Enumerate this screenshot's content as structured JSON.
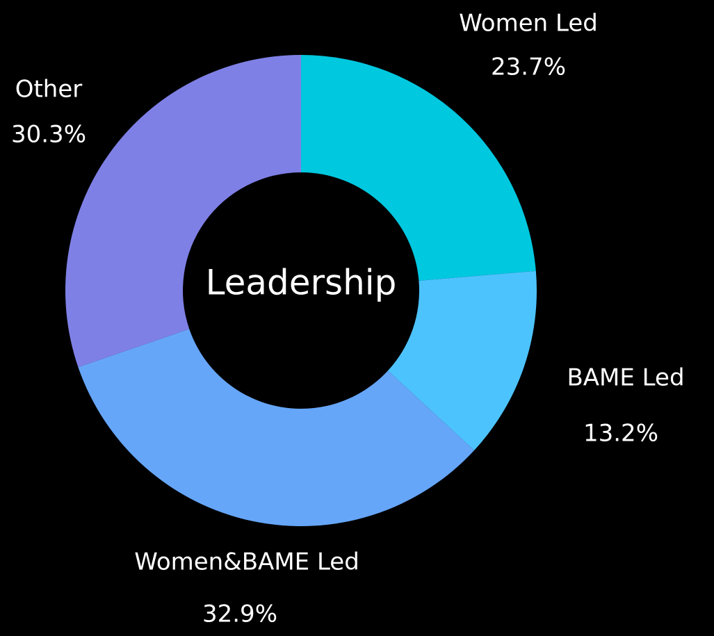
{
  "chart_data": {
    "type": "pie",
    "center_label": "Leadership",
    "categories": [
      "Women Led",
      "BAME Led",
      "Women&BAME Led",
      "Other"
    ],
    "values": [
      23.7,
      13.2,
      32.9,
      30.3
    ],
    "value_labels": [
      "23.7%",
      "13.2%",
      "32.9%",
      "30.3%"
    ],
    "colors": [
      "#00c8df",
      "#4dc3fd",
      "#66a6f9",
      "#7f80e6"
    ],
    "donut": true
  }
}
